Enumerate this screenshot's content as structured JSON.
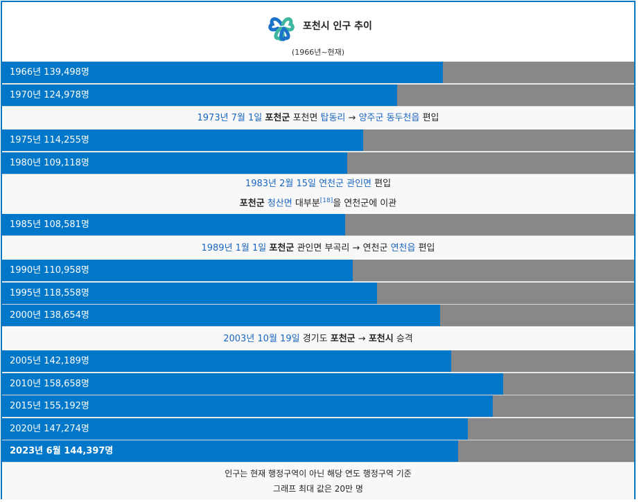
{
  "header": {
    "title": "포천시 인구 추이",
    "subtitle": "(1966년~현재)",
    "logo_icon": "pocheon-clover-logo"
  },
  "colors": {
    "bar": "#0077c8",
    "track": "#888888",
    "border": "#0077c0",
    "link": "#1a66c2"
  },
  "chart_data": {
    "type": "bar",
    "orientation": "horizontal",
    "xlim": [
      0,
      200000
    ],
    "categories": [
      "1966년",
      "1970년",
      "1975년",
      "1980년",
      "1985년",
      "1990년",
      "1995년",
      "2000년",
      "2005년",
      "2010년",
      "2015년",
      "2020년",
      "2023년 6월"
    ],
    "values": [
      139498,
      124978,
      114255,
      109118,
      108581,
      110958,
      118558,
      138654,
      142189,
      158658,
      155192,
      147274,
      144397
    ],
    "bar_labels": [
      "1966년 139,498명",
      "1970년 124,978명",
      "1975년 114,255명",
      "1980년 109,118명",
      "1985년 108,581명",
      "1990년 110,958명",
      "1995년 118,558명",
      "2000년 138,654명",
      "2005년 142,189명",
      "2010년 158,658명",
      "2015년 155,192명",
      "2020년 147,274명",
      "2023년 6월 144,397명"
    ]
  },
  "notes": {
    "n1973": {
      "date": "1973년 7월 1일",
      "a": "포천군",
      "b": "포천면",
      "c": "탑동리",
      "arrow": "→",
      "d": "양주군 동두천읍",
      "e": "편입"
    },
    "n1983a": {
      "date": "1983년 2월 15일",
      "a": "연천군 관인면",
      "b": "편입"
    },
    "n1983b": {
      "a": "포천군",
      "b": "청산면",
      "c": "대부분",
      "ref": "[18]",
      "d": "을 연천군에 이관"
    },
    "n1989": {
      "date": "1989년 1월 1일",
      "a": "포천군",
      "b": "관인면 부곡리",
      "arrow": "→",
      "c": "연천군",
      "d": "연천읍",
      "e": "편입"
    },
    "n2003": {
      "date": "2003년 10월 19일",
      "a": "경기도",
      "b": "포천군",
      "arrow": "→",
      "c": "포천시",
      "d": "승격"
    }
  },
  "footer": {
    "line1": "인구는 현재 행정구역이 아닌 해당 연도 행정구역 기준",
    "line2": "그래프 최대 값은 20만 명"
  }
}
